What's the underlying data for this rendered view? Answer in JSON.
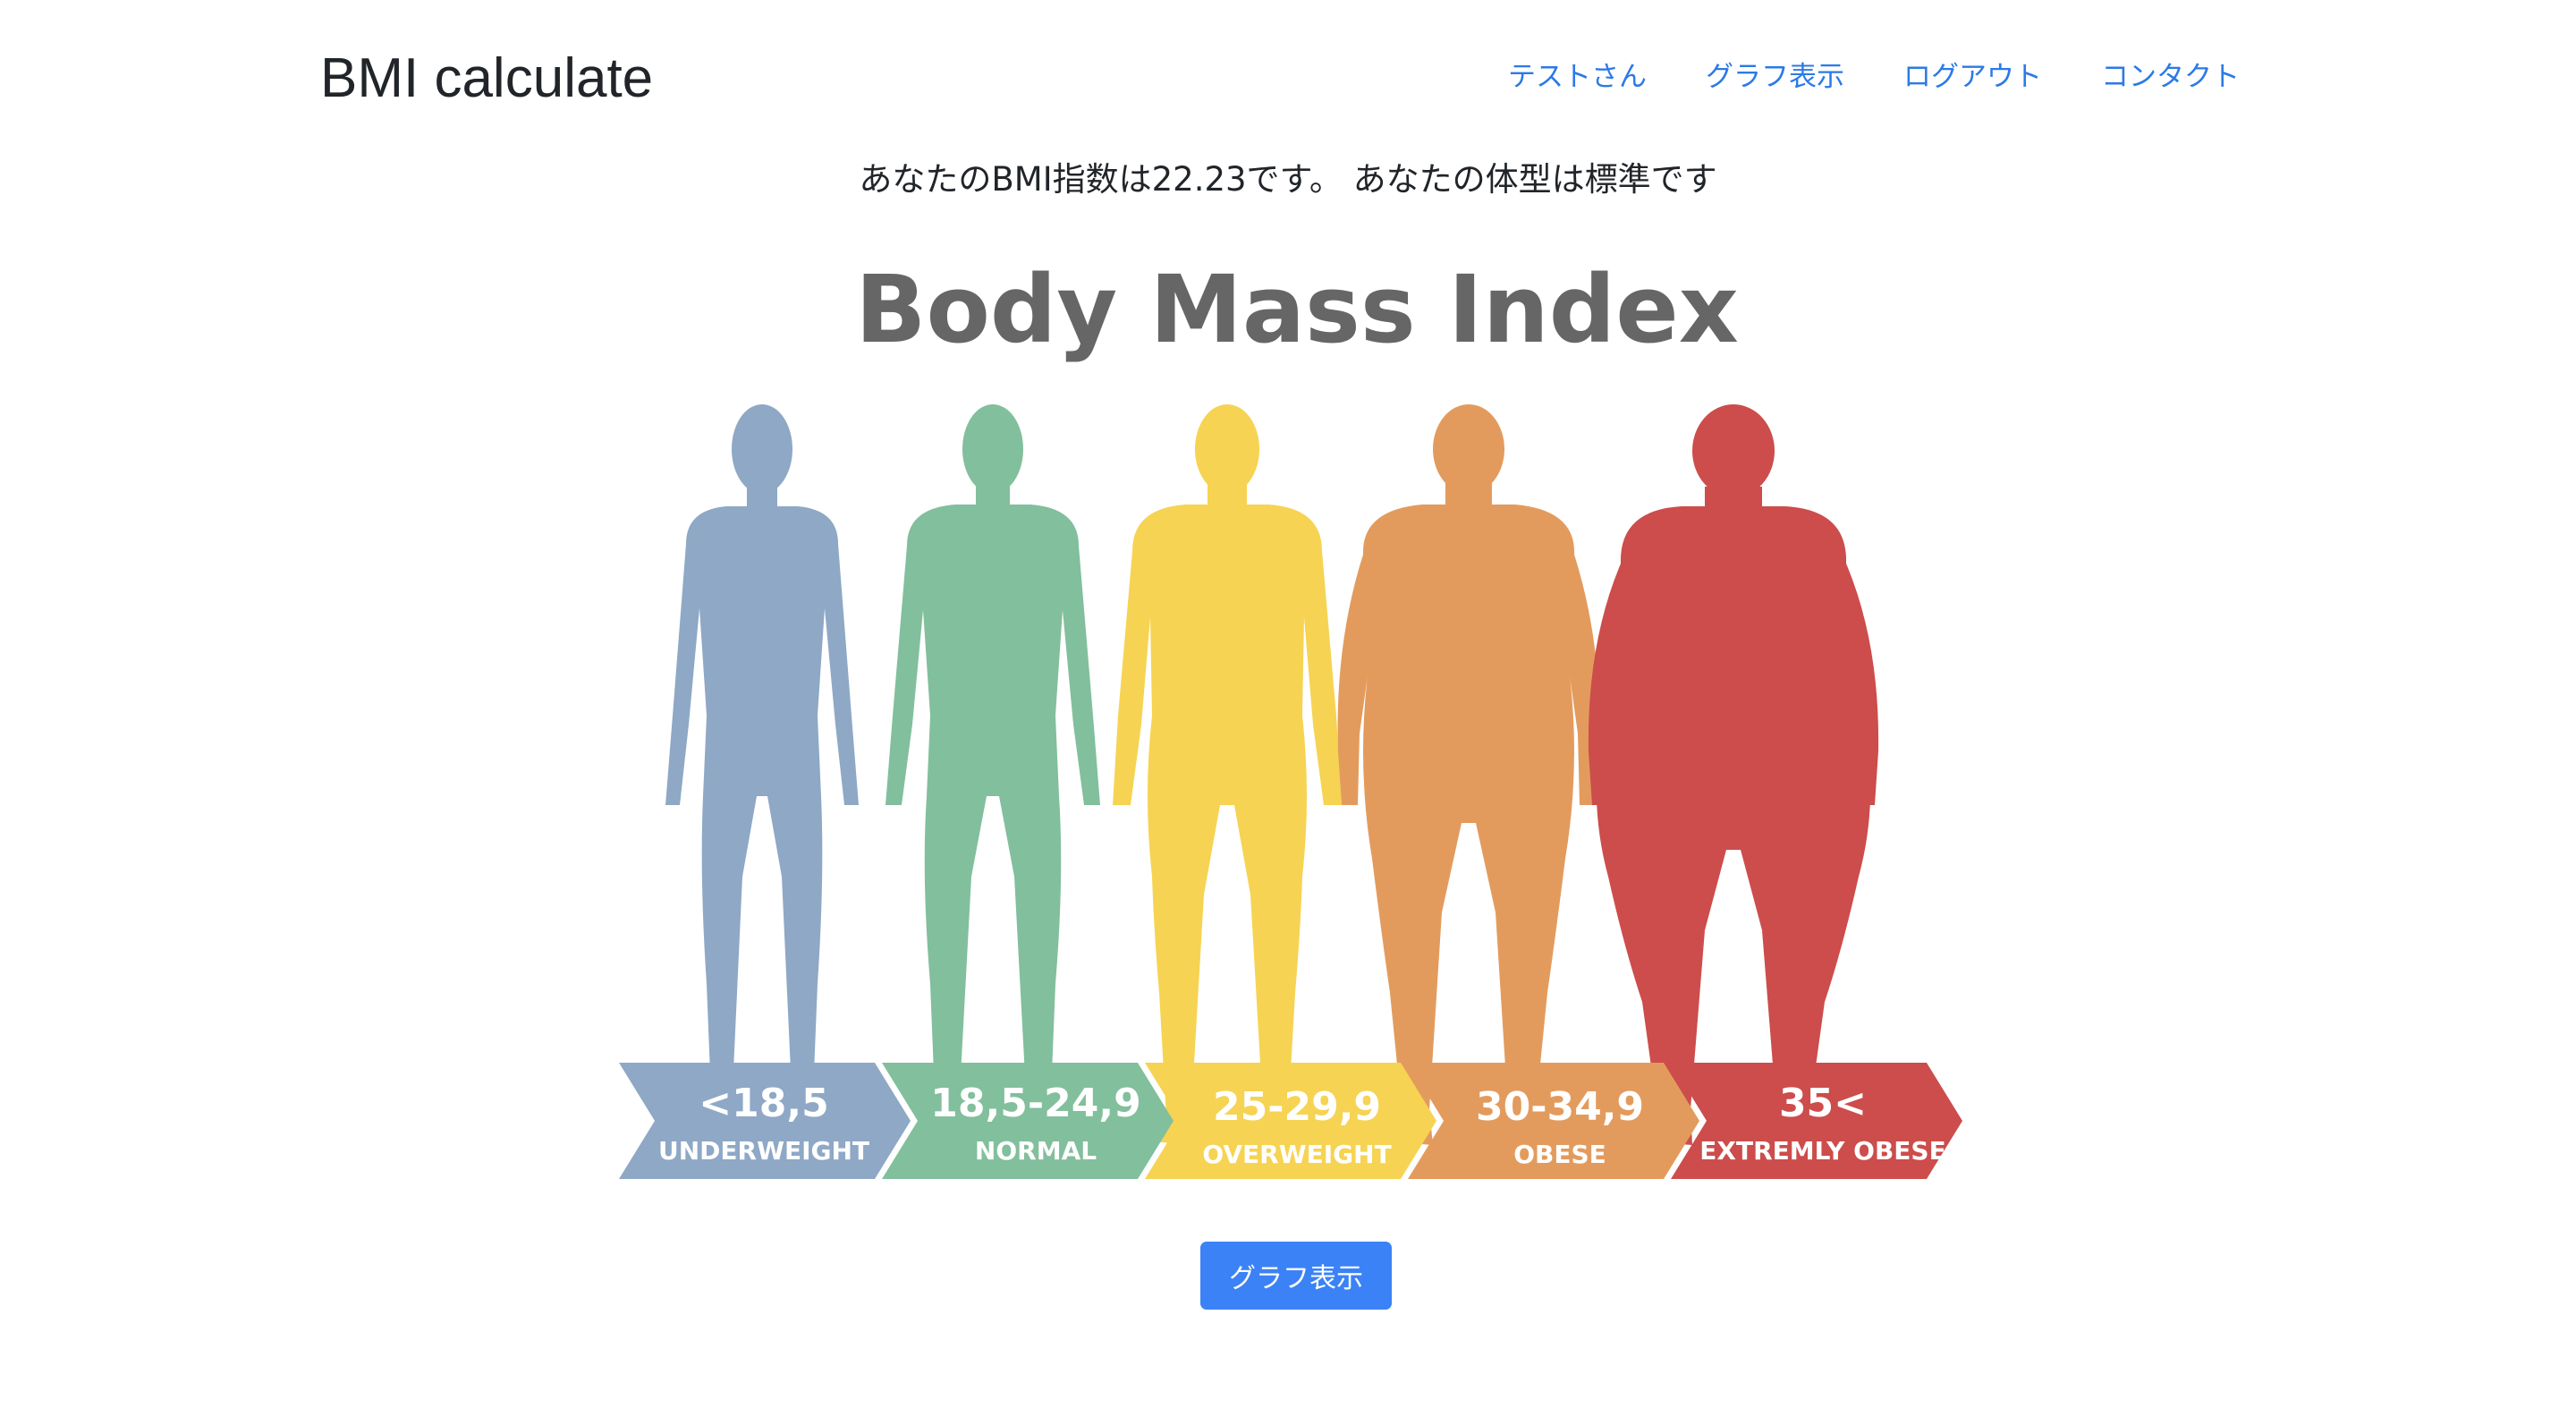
{
  "navbar": {
    "brand": "BMI calculate",
    "links": [
      {
        "label": "テストさん"
      },
      {
        "label": "グラフ表示"
      },
      {
        "label": "ログアウト"
      },
      {
        "label": "コンタクト"
      }
    ]
  },
  "result": {
    "message": "あなたのBMI指数は22.23です。 あなたの体型は標準です"
  },
  "bmi_figure": {
    "title": "Body Mass Index",
    "categories": [
      {
        "range": "<18,5",
        "label": "UNDERWEIGHT",
        "color": "#8ea8c6"
      },
      {
        "range": "18,5-24,9",
        "label": "NORMAL",
        "color": "#82bf9c"
      },
      {
        "range": "25-29,9",
        "label": "OVERWEIGHT",
        "color": "#f6d352"
      },
      {
        "range": "30-34,9",
        "label": "OBESE",
        "color": "#e39b5d"
      },
      {
        "range": "35<",
        "label": "EXTREMLY OBESE",
        "color": "#cc4d4b"
      }
    ]
  },
  "actions": {
    "graph_button": "グラフ表示"
  }
}
